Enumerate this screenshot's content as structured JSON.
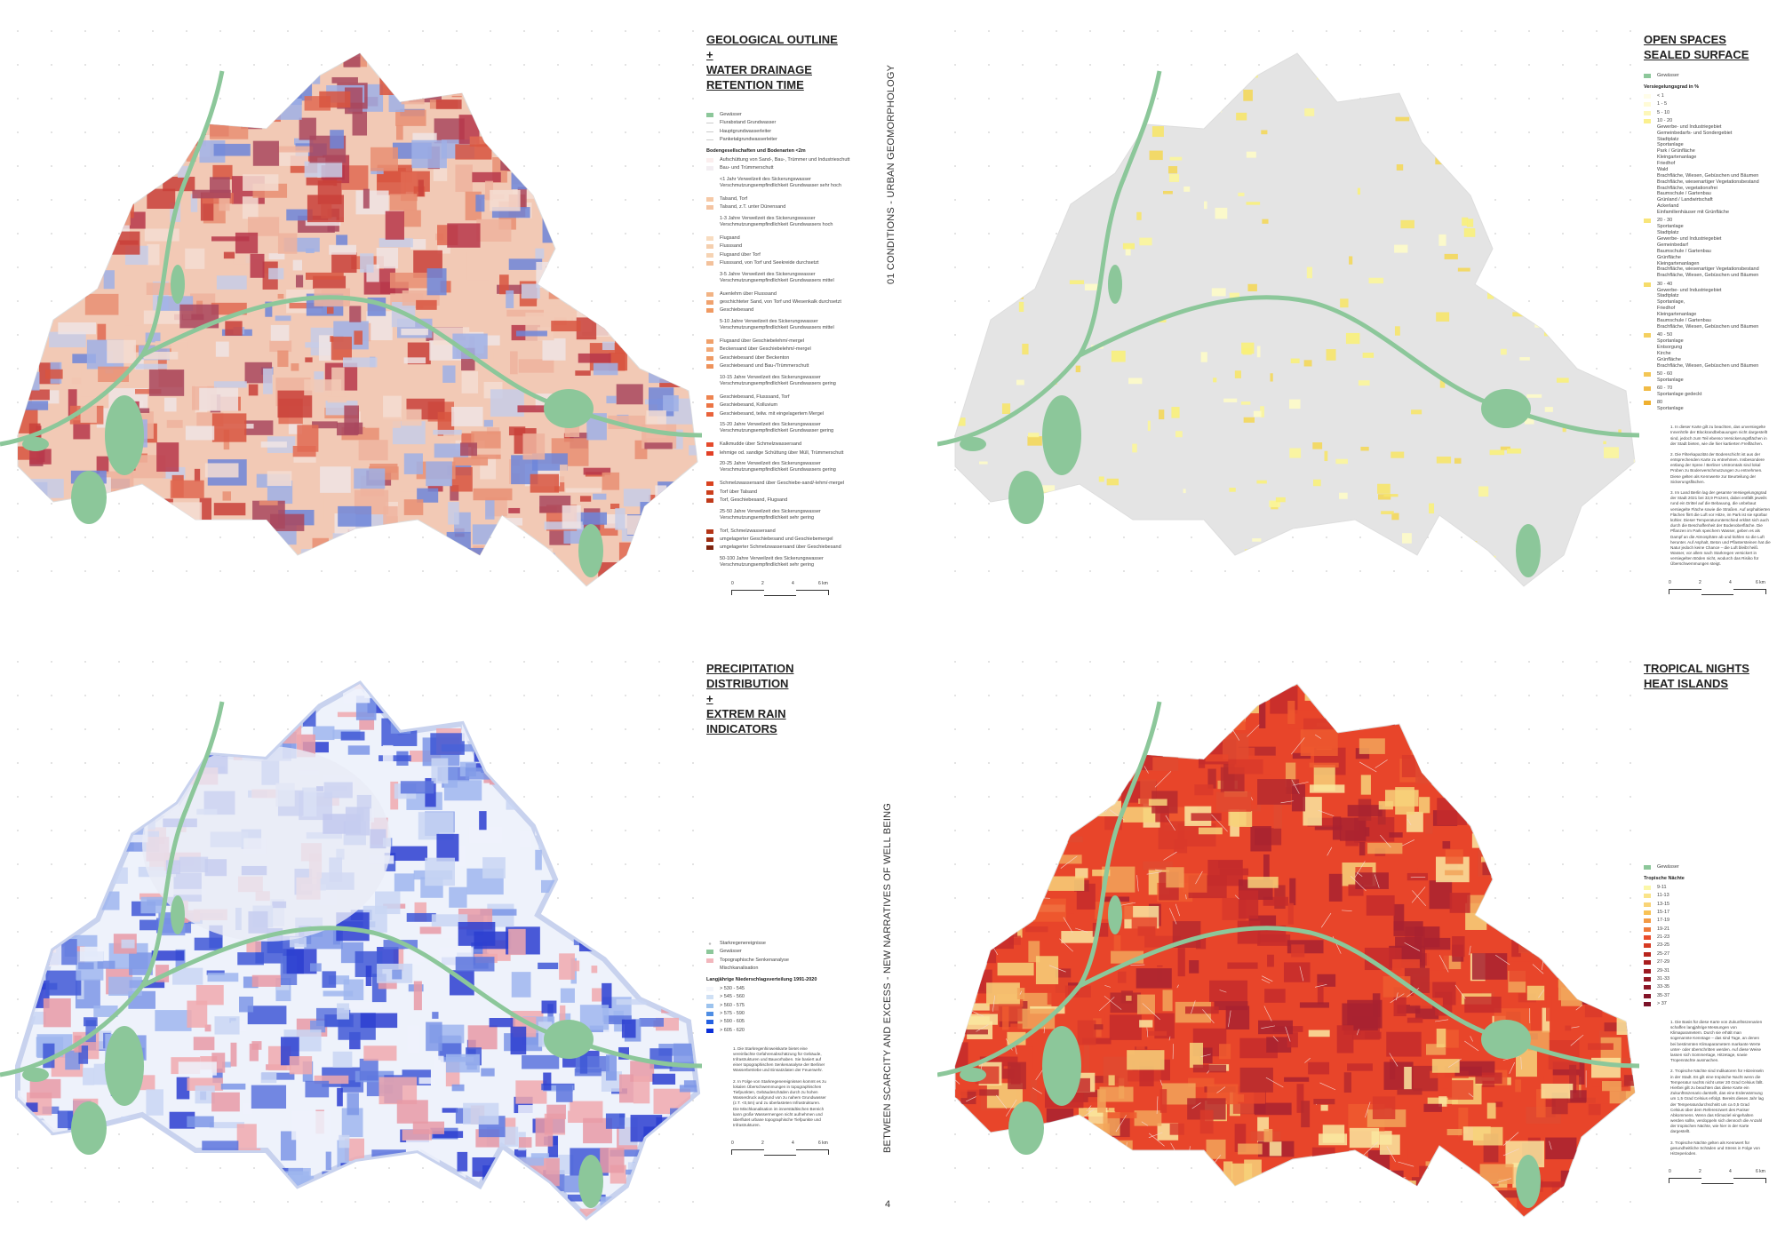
{
  "side_titles": {
    "top": "01 CONDITIONS - URBAN GEOMORPHOLOGY",
    "bottom": "BETWEEN SCARCITY AND EXCESS - NEW NARRATIVES OF WELL BEING"
  },
  "page_number": "4",
  "scale_labels": [
    "0",
    "2",
    "4",
    "6 km"
  ],
  "colors": {
    "water": "#8cc79a",
    "map_base": "#e4e4e4"
  },
  "panels": [
    {
      "id": "geology",
      "title_lines": [
        "GEOLOGICAL OUTLINE",
        "+",
        "WATER DRAINAGE",
        "RETENTION TIME"
      ],
      "palette": [
        "#f2c9b5",
        "#eeb39e",
        "#e98f73",
        "#e06a52",
        "#d8553f",
        "#c9413a",
        "#b7374a",
        "#a9485e",
        "#f4ddd2",
        "#c7cde8",
        "#9fb0e6",
        "#6f86d9",
        "#f0e4e4"
      ],
      "legend": [
        {
          "label": "Gewässer",
          "color": "#8cc79a"
        },
        {
          "label": "Flurabstand Grundwasser",
          "color": "line"
        },
        {
          "label": "Hauptgrundwasserleiter",
          "color": "line"
        },
        {
          "label": "Panketalgrundwasserleiter",
          "color": "line"
        },
        {
          "heading": "Bodengesellschaften und Bodenarten <2m"
        },
        {
          "label": "Aufschüttung von Sand-, Bau-, Trümmer und Industrieschutt",
          "color": "#fbeeee"
        },
        {
          "label": "Bau- und Trümmerschutt",
          "color": "#f3eef2"
        },
        {
          "note": "<1 Jahr Verweilzeit des Sickerungswasser Verschmutzungsempfindlichkeit Grundwasser sehr hoch"
        },
        {
          "label": "Talsand, Torf",
          "color": "#f6c9a6"
        },
        {
          "label": "Talsand, z.T. unter Dünensand",
          "color": "#f4c4a2"
        },
        {
          "note": "1-3 Jahre Verweilzeit des Sickerungswasser Verschmutzungsempfindlichkeit Grundwassers hoch"
        },
        {
          "label": "Flugsand",
          "color": "#f8dcc0"
        },
        {
          "label": "Flusssand",
          "color": "#f5cfae"
        },
        {
          "label": "Flugsand über Torf",
          "color": "#f6d3b3"
        },
        {
          "label": "Flusssand, von Torf und Seekreide durchsetzt",
          "color": "#f3c19b"
        },
        {
          "note": "3-5 Jahre Verweilzeit des Sickerungswasser Verschmutzungsempfindlichkeit Grundwassers mittel"
        },
        {
          "label": "Auenlehm über Flusssand",
          "color": "#f2b384"
        },
        {
          "label": "geschichteter Sand, von Torf und Wiesenkalk durchsetzt",
          "color": "#f0a26e"
        },
        {
          "label": "Geschiebesand",
          "color": "#f09a62"
        },
        {
          "note": "5-10 Jahre Verweilzeit des Sickerungswasser Verschmutzungsempfindlichkeit Grundwassers mittel"
        },
        {
          "label": "Flugsand über Geschiebelehm/-mergel",
          "color": "#f0a06a"
        },
        {
          "label": "Beckensand über Geschiebelehm/-mergel",
          "color": "#f2a977"
        },
        {
          "label": "Geschiebesand über Beckenton",
          "color": "#ef9a63"
        },
        {
          "label": "Geschiebesand und Bau-/Trümmerschutt",
          "color": "#ee925b"
        },
        {
          "note": "10-15 Jahre Verweilzeit des Sickerungswasser Verschmutzungsempfindlichkeit Grundwassers gering"
        },
        {
          "label": "Geschiebesand, Flusssand, Torf",
          "color": "#ee8450"
        },
        {
          "label": "Geschiebesand, Kolluvium",
          "color": "#ec7444"
        },
        {
          "label": "Geschiebesand, teilw. mit eingelagertem Mergel",
          "color": "#e9623a"
        },
        {
          "note": "15-20 Jahre Verweilzeit des Sickerungswasser Verschmutzungsempfindlichkeit Grundwasser gering"
        },
        {
          "label": "Kalkmudde über Schmelzwassersand",
          "color": "#e54a2c"
        },
        {
          "label": "lehmige od. sandige Schüttung über Müll, Trümmerschutt",
          "color": "#e23f25"
        },
        {
          "note": "20-25 Jahre Verweilzeit des Sickerungswasser Verschmutzungsempfindlichkeit Grundwassers gering"
        },
        {
          "label": "Schmelzwassersand über Geschiebe-sand/-lehm/-mergel",
          "color": "#d9421f"
        },
        {
          "label": "Torf über Talsand",
          "color": "#cc3f1c"
        },
        {
          "label": "Torf, Geschiebesand, Flugsand",
          "color": "#c03a1a"
        },
        {
          "note": "25-50 Jahre Verweilzeit des Sickerungswasser Verschmutzungsempfindlichkeit sehr gering"
        },
        {
          "label": "Torf, Schmelzwassersand",
          "color": "#b33416"
        },
        {
          "label": "umgelagerter Geschiebesand und Geschiebemergel",
          "color": "#9c2c12"
        },
        {
          "label": "umgelagerter Schmelzwassersand über Geschiebesand",
          "color": "#7e230e"
        },
        {
          "note": "50-100 Jahre Verweilzeit des Sickerungswasser Verschmutzungsempfindlichkeit sehr gering"
        }
      ],
      "notes": []
    },
    {
      "id": "sealed",
      "title_lines": [
        "OPEN SPACES",
        "SEALED SURFACE"
      ],
      "palette": [
        "#fdfbc8",
        "#fbf59a",
        "#f8ef7a",
        "#f6e46a",
        "#f3d75a"
      ],
      "legend": [
        {
          "label": "Gewässer",
          "color": "#8cc79a"
        },
        {
          "heading": "Versiegelungsgrad in %"
        },
        {
          "label": "< 1",
          "color": "#fffde8"
        },
        {
          "label": "1 - 5",
          "color": "#fffbd6"
        },
        {
          "label": "5 - 10",
          "color": "#fdf7b8"
        },
        {
          "label": "10 - 20",
          "color": "#fbf08e",
          "sub": [
            "Gewerbe- und Industriegebiet",
            "Gemeinbedarfs- und Sondergebiet",
            "Stadtplatz",
            "Sportanlage",
            "Park / Grünfläche",
            "Kleingartenanlage",
            "Friedhof",
            "Wald",
            "Brachfläche, Wiesen, Gebüschen und Bäumen",
            "Brachfläche, wiesenartiger Vegetationsbestand",
            "Brachfläche, vegetationsfrei",
            "Baumschule / Gartenbau",
            "Grünland / Landwirtschaft",
            "Ackerland",
            "Einfamilienhäuser mit Grünfläche"
          ]
        },
        {
          "label": "20 - 30",
          "color": "#f8e57a",
          "sub": [
            "Sportanlage",
            "Stadtplatz",
            "Gewerbe- und Industriegebiet",
            "Gemeinbedarf",
            "Baumschule / Gartenbau",
            "Grünfläche",
            "Kleingartenanlagen",
            "Brachfläche, wiesenartiger Vegetationsbestand",
            "Brachfläche, Wiesen, Gebüschen und Bäumen"
          ]
        },
        {
          "label": "30 - 40",
          "color": "#f6dc6a",
          "sub": [
            "Gewerbe- und Industriegebiet",
            "Stadtplatz",
            "Sportanlage,",
            "Friedhof",
            "Kleingartenanlage",
            "Baumschule / Gartenbau",
            "Brachfläche, Wiesen, Gebüschen und Bäumen"
          ]
        },
        {
          "label": "40 - 50",
          "color": "#f4d060",
          "sub": [
            "Sportanlage",
            "Entsorgung",
            "Kirche",
            "Grünfläche",
            "Brachfläche, Wiesen, Gebüschen und Bäumen"
          ]
        },
        {
          "label": "50 - 60",
          "color": "#f3c655",
          "sub": [
            "Sportanlage"
          ]
        },
        {
          "label": "60 - 70",
          "color": "#f1bb45",
          "sub": [
            "Sportanlage gedeckt"
          ]
        },
        {
          "label": "80",
          "color": "#efb030",
          "sub": [
            "Sportanlage"
          ]
        }
      ],
      "notes": [
        "1. In dieser Karte gilt zu beachten, das unversiegelte Innenhöfe der Blockrandbebauungen nicht dargestellt sind, jedoch zum Teil ebenso Versickerungsflächen in der Stadt bieten, wie die hier kartierten Freiflächen.",
        "2. Die Filterkapazität der Bodenschicht ist aus der entsprechenden Karte zu entnehmen. Insbesondere entlang der Spree / Berliner Urstromtals sind lokal Proben zu Bodenverschmutzungen zu entnehmen. Diese gelten als Kennwerte zur Beurteilung der Sickerungsflächen.",
        "3. Im Land Berlin lag der gesamte Versiegelungsgrad der Stadt 2021 bei 33,9 Prozent, dabei entfällt jeweils rund ein Drittel auf die Bebauung, die unbebaut versiegelte Fläche sowie die Straßen. Auf asphaltierten Flächen flirrt die Luft vor Hitze, im Park ist sie spürbar kühler. Dieser Temperaturunterschied erklärt sich auch durch die Beschaffenheit der Bodenoberfläche. Die Pflanzen im Park speichern Wasser, geben es als Dampf an die Atmosphäre ab und kühlen so die Luft herunter. Auf Asphalt, Beton und Pflastersteinen hat die Natur jedoch keine Chance – die Luft bleibt heiß. Wasser, vor allem nach Starkregen versickert in versiegelten Böden nicht, wodurch das Risiko für Überschwemmungen steigt."
      ]
    },
    {
      "id": "precipitation",
      "title_lines": [
        "PRECIPITATION",
        "DISTRIBUTION",
        "+",
        "EXTREM RAIN",
        "INDICATORS"
      ],
      "palette": [
        "#eef2fb",
        "#c9d6f3",
        "#9fb6ee",
        "#7d96e6",
        "#5c74dd",
        "#4058d6",
        "#2c3ed0",
        "#f0a9ae",
        "#e89aa6"
      ],
      "legend": [
        {
          "label": "Starkregenereignisse",
          "color": "dot"
        },
        {
          "label": "Gewässer",
          "color": "#8cc79a"
        },
        {
          "label": "Topographische Senkenanalyse",
          "color": "#f2b7bd"
        },
        {
          "label": "Mischkanalisation",
          "color": "none"
        },
        {
          "heading": "Langjährige Niederschlagsverteilung 1991-2020"
        },
        {
          "label": "> 530 - 545",
          "color": "#f4f6fb"
        },
        {
          "label": "> 545 - 560",
          "color": "#cfe0f5"
        },
        {
          "label": "> 560 - 575",
          "color": "#9cc3ee"
        },
        {
          "label": "> 575 - 590",
          "color": "#4f8ee4"
        },
        {
          "label": "> 590 - 605",
          "color": "#2360e2"
        },
        {
          "label": "> 605 - 620",
          "color": "#0b2fd8"
        }
      ],
      "notes": [
        "1. Die Starkregenhinweiskarte bietet eine vereinfachte Gefahrenabschätzung für Gebäude, Infrastrukturen und Bauvorhaben. Sie basiert auf einer topographischen Senkenanalyse der Berliner Wasserbetriebe und Einsatzdaten der Feuerwehr.",
        "2. In Folge von Starkregenereignissen kommt es zu lokalen Überschwemmungen in topographischen Tiefpunkten, Gebäudeschäden durch zu hohen Wasserdruck aufgrund von zu nahem Grundwasser (z.T. <0,5m) und zu überlasteten Infrastrukturen. Die Mischkanalisation im innerstädtischen Bereich kann große Wassermengen nicht aufnehmen und überflutet urbane topographische Tiefpunkte und Infrastrukturen."
      ]
    },
    {
      "id": "heat",
      "title_lines": [
        "TROPICAL NIGHTS",
        "HEAT ISLANDS"
      ],
      "palette": [
        "#e8452a",
        "#ee5a2f",
        "#d93a2a",
        "#c42c2c",
        "#a82230",
        "#f2a55a",
        "#f7d27a",
        "#fae7a0",
        "#e04a30",
        "#b62a2e"
      ],
      "legend": [
        {
          "label": "Gewässer",
          "color": "#8cc79a"
        },
        {
          "heading": "Tropische Nächte"
        },
        {
          "label": "9-11",
          "color": "#fbf7a8"
        },
        {
          "label": "11-13",
          "color": "#fae48a"
        },
        {
          "label": "13-15",
          "color": "#f9d477"
        },
        {
          "label": "15-17",
          "color": "#f8c255"
        },
        {
          "label": "17-19",
          "color": "#f39a45"
        },
        {
          "label": "19-21",
          "color": "#ef7a3a"
        },
        {
          "label": "21-23",
          "color": "#e94c2a"
        },
        {
          "label": "23-25",
          "color": "#d63a22"
        },
        {
          "label": "25-27",
          "color": "#b8241c"
        },
        {
          "label": "27-29",
          "color": "#a81d1e"
        },
        {
          "label": "29-31",
          "color": "#9c1a22"
        },
        {
          "label": "31-33",
          "color": "#941824"
        },
        {
          "label": "33-35",
          "color": "#8c1626"
        },
        {
          "label": "35-37",
          "color": "#841428"
        },
        {
          "label": "> 37",
          "color": "#7c1229"
        }
      ],
      "notes": [
        "1. Die Basis für diese Karte von Zukunftsszenarien schaffen langjährige Messungen von Klimaparametern. Durch sie erhält man sogenannte Kenntage – das sind Tage, an denen bei bestimmten Klimaparametern markante Werte unter- oder überschritten werden. Auf diese Weise lassen sich Sommertage, Hitzetage, sowie Tropennächte ausmachen.",
        "2. Tropische Nächte sind Indikatoren für Hitzeinseln in der Stadt. Es gilt eine tropische Nacht wenn die Temperatur nachts nicht unter 20 Grad Celsius fällt. Hierbei gilt zu beachten das diese Karte ein Zukunftsszenario darstellt, das eine Erderwärmung um 1,5 Grad Celsius erfolgt. Bereits dieses Jahr lag der Temperaturdurchschnitt um ca 0,5 Grad Celsius über dem Referenzwert des Pariser Abkommens. Wenn das Klimaziel eingehalten werden sollte, verdoppeln sich dennoch die Anzahl der tropischen Nächte, wie hier in der Karte dargestellt.",
        "3. Tropische Nächte gelten als Kennwert für gesundheitliche Schäden und Stress in Folge von Hitzeperioden."
      ]
    }
  ]
}
